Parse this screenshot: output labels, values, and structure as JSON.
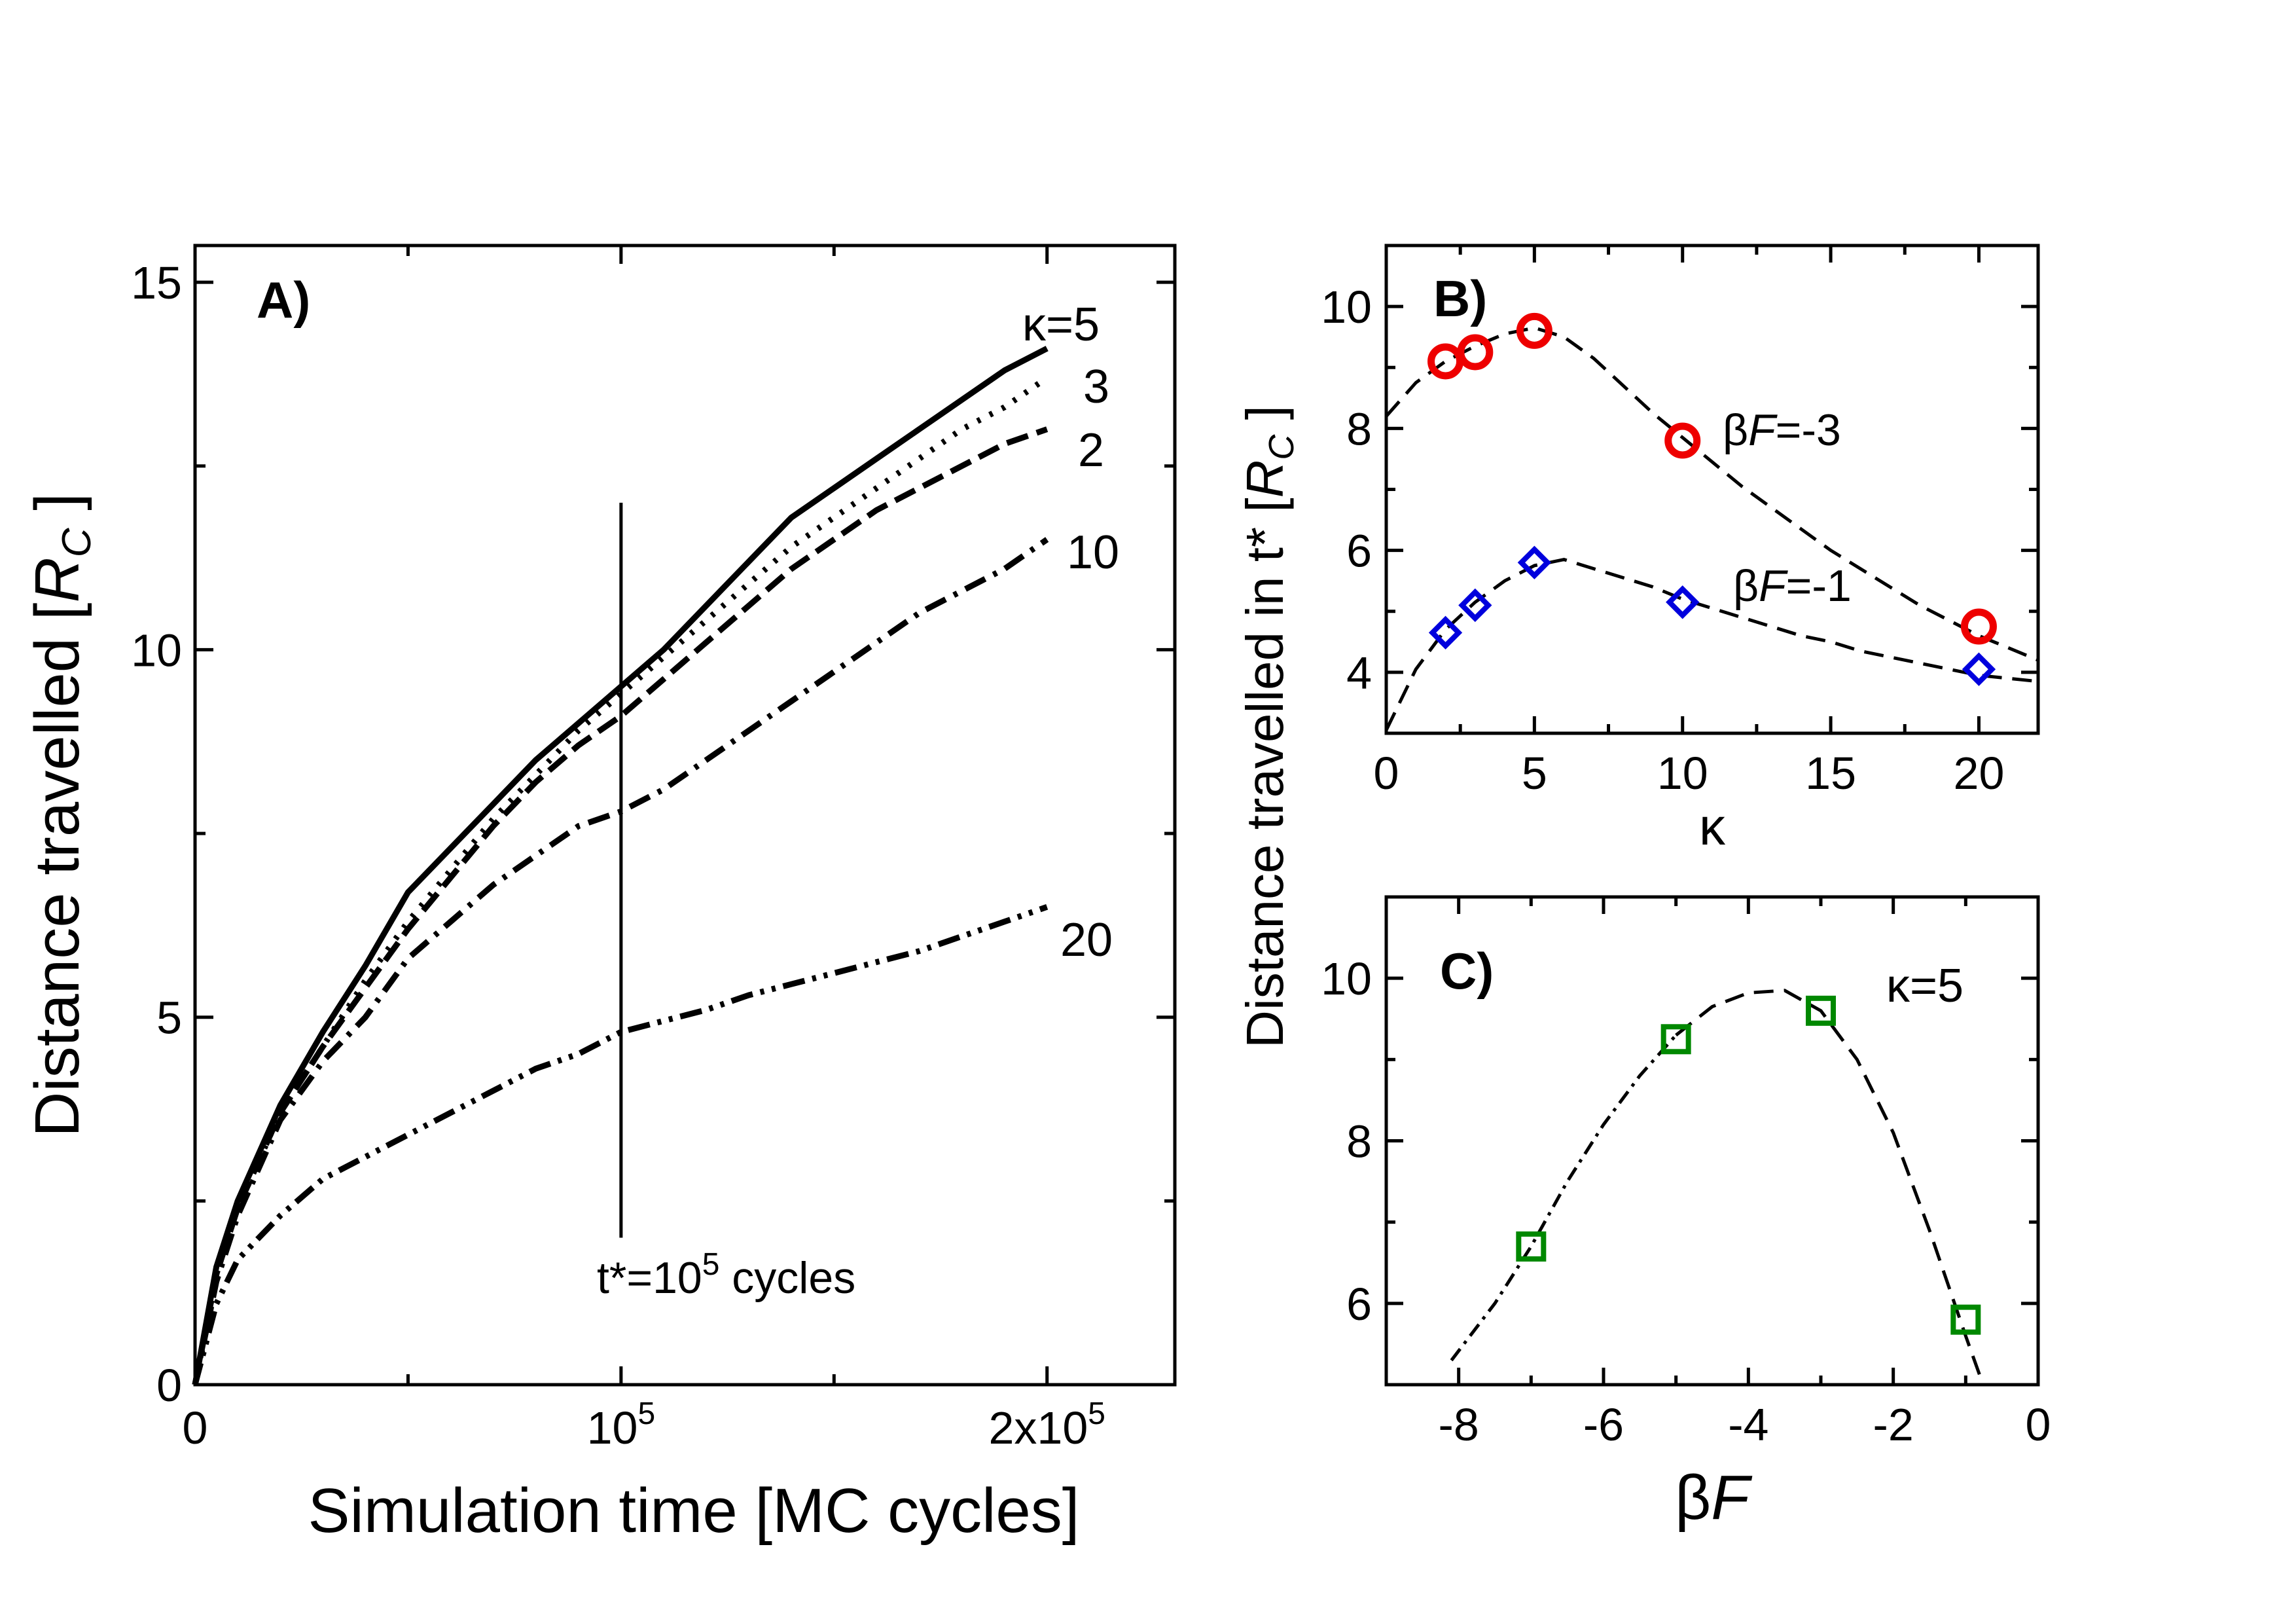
{
  "chart_data": [
    {
      "panel": "A",
      "type": "line",
      "panel_label": "A)",
      "xlabel": "Simulation time [MC cycles]",
      "ylabel_parts": [
        "Distance travelled [",
        "R",
        "C",
        " ]"
      ],
      "xlim": [
        0,
        230000
      ],
      "ylim": [
        0,
        15.5
      ],
      "x_ticks": [
        {
          "value": 0,
          "base": "0",
          "exp": ""
        },
        {
          "value": 100000,
          "base": "10",
          "exp": "5"
        },
        {
          "value": 200000,
          "base": "2x10",
          "exp": "5"
        }
      ],
      "y_ticks": [
        0,
        5,
        10,
        15
      ],
      "marker_line": {
        "x": 100000,
        "y_from": 2,
        "y_to": 12,
        "label_base": "t*=10",
        "label_exp": "5",
        "label_tail": " cycles"
      },
      "series": [
        {
          "label": "κ=5",
          "dash": "solid",
          "x": [
            0,
            5000,
            10000,
            20000,
            30000,
            40000,
            50000,
            60000,
            70000,
            80000,
            90000,
            100000,
            110000,
            120000,
            130000,
            140000,
            150000,
            160000,
            170000,
            180000,
            190000,
            200000
          ],
          "y": [
            0,
            1.6,
            2.5,
            3.8,
            4.8,
            5.7,
            6.7,
            7.3,
            7.9,
            8.5,
            9.0,
            9.5,
            10.0,
            10.6,
            11.2,
            11.8,
            12.2,
            12.6,
            13.0,
            13.4,
            13.8,
            14.1
          ]
        },
        {
          "label": "3",
          "dash": "dot",
          "x": [
            0,
            5000,
            10000,
            20000,
            30000,
            40000,
            50000,
            60000,
            70000,
            80000,
            90000,
            100000,
            110000,
            120000,
            130000,
            140000,
            150000,
            160000,
            170000,
            180000,
            190000,
            200000
          ],
          "y": [
            0,
            1.5,
            2.4,
            3.7,
            4.6,
            5.5,
            6.3,
            7.0,
            7.7,
            8.3,
            8.9,
            9.4,
            9.9,
            10.4,
            10.9,
            11.4,
            11.8,
            12.2,
            12.6,
            13.0,
            13.3,
            13.7
          ]
        },
        {
          "label": "2",
          "dash": "dash",
          "x": [
            0,
            5000,
            10000,
            20000,
            30000,
            40000,
            50000,
            60000,
            70000,
            80000,
            90000,
            100000,
            110000,
            120000,
            130000,
            140000,
            150000,
            160000,
            170000,
            180000,
            190000,
            200000
          ],
          "y": [
            0,
            1.5,
            2.4,
            3.7,
            4.6,
            5.4,
            6.2,
            6.9,
            7.6,
            8.2,
            8.7,
            9.1,
            9.6,
            10.1,
            10.6,
            11.1,
            11.5,
            11.9,
            12.2,
            12.5,
            12.8,
            13.0
          ]
        },
        {
          "label": "10",
          "dash": "dashdot",
          "x": [
            0,
            5000,
            10000,
            20000,
            30000,
            40000,
            50000,
            60000,
            70000,
            80000,
            90000,
            100000,
            110000,
            120000,
            130000,
            140000,
            150000,
            160000,
            170000,
            180000,
            190000,
            200000
          ],
          "y": [
            0,
            1.4,
            2.3,
            3.6,
            4.4,
            5.0,
            5.8,
            6.3,
            6.8,
            7.2,
            7.6,
            7.8,
            8.1,
            8.5,
            8.9,
            9.3,
            9.7,
            10.1,
            10.5,
            10.8,
            11.1,
            11.5
          ]
        },
        {
          "label": "20",
          "dash": "dashdotdot",
          "x": [
            0,
            5000,
            10000,
            20000,
            30000,
            40000,
            50000,
            60000,
            70000,
            80000,
            90000,
            100000,
            110000,
            120000,
            130000,
            140000,
            150000,
            160000,
            170000,
            180000,
            190000,
            200000
          ],
          "y": [
            0,
            1.1,
            1.7,
            2.3,
            2.8,
            3.1,
            3.4,
            3.7,
            4.0,
            4.3,
            4.5,
            4.8,
            4.95,
            5.1,
            5.3,
            5.45,
            5.6,
            5.75,
            5.9,
            6.1,
            6.3,
            6.5
          ]
        }
      ]
    },
    {
      "panel": "B",
      "type": "scatter",
      "panel_label": "B)",
      "xlabel": "κ",
      "ylabel_parts": [
        "Distance travelled in t* [",
        "R",
        "C",
        " ]"
      ],
      "xlim": [
        0,
        22
      ],
      "ylim": [
        3,
        11
      ],
      "x_ticks": [
        0,
        5,
        10,
        15,
        20
      ],
      "y_ticks": [
        4,
        6,
        8,
        10
      ],
      "series": [
        {
          "label_prefix": "β",
          "label_italic": "F",
          "label_suffix": "=-3",
          "marker": "circle",
          "color": "#ee0000",
          "x": [
            2,
            3,
            5,
            10,
            20
          ],
          "y": [
            9.1,
            9.25,
            9.6,
            7.8,
            4.75
          ],
          "fit_x": [
            0,
            1,
            2,
            3,
            4,
            5,
            6,
            7,
            8,
            9,
            10,
            11,
            12,
            13,
            14,
            15,
            16,
            17,
            18,
            19,
            20,
            21,
            22
          ],
          "fit_y": [
            8.2,
            8.75,
            9.1,
            9.35,
            9.55,
            9.65,
            9.5,
            9.15,
            8.7,
            8.25,
            7.85,
            7.45,
            7.05,
            6.7,
            6.35,
            6.0,
            5.7,
            5.4,
            5.1,
            4.85,
            4.6,
            4.4,
            4.2
          ]
        },
        {
          "label_prefix": "β",
          "label_italic": "F",
          "label_suffix": "=-1",
          "marker": "diamond",
          "color": "#0000dd",
          "x": [
            2,
            3,
            5,
            10,
            20
          ],
          "y": [
            4.65,
            5.1,
            5.8,
            5.15,
            4.05
          ],
          "fit_x": [
            0,
            1,
            2,
            3,
            4,
            5,
            6,
            7,
            8,
            9,
            10,
            11,
            12,
            13,
            14,
            15,
            16,
            17,
            18,
            19,
            20,
            21,
            22
          ],
          "fit_y": [
            3.05,
            4.05,
            4.7,
            5.15,
            5.5,
            5.75,
            5.85,
            5.7,
            5.55,
            5.4,
            5.2,
            5.05,
            4.9,
            4.75,
            4.6,
            4.5,
            4.35,
            4.25,
            4.15,
            4.05,
            3.95,
            3.9,
            3.85
          ]
        }
      ]
    },
    {
      "panel": "C",
      "type": "scatter",
      "panel_label": "C)",
      "annotation": "κ=5",
      "xlabel_prefix": "β",
      "xlabel_italic": "F",
      "xlim": [
        -9,
        0
      ],
      "ylim": [
        5,
        11
      ],
      "x_ticks": [
        -8,
        -6,
        -4,
        -2,
        0
      ],
      "y_ticks": [
        6,
        8,
        10
      ],
      "series": [
        {
          "marker": "square",
          "color": "#008800",
          "x": [
            -7,
            -5,
            -3,
            -1
          ],
          "y": [
            6.7,
            9.25,
            9.6,
            5.8
          ],
          "fit_x": [
            -8.1,
            -7.5,
            -7.0,
            -6.5,
            -6.0,
            -5.5,
            -5.0,
            -4.5,
            -4.0,
            -3.5,
            -3.0,
            -2.5,
            -2.0,
            -1.5,
            -1.0,
            -0.8
          ],
          "fit_y": [
            5.3,
            6.0,
            6.7,
            7.5,
            8.2,
            8.8,
            9.3,
            9.65,
            9.82,
            9.85,
            9.6,
            9.0,
            8.1,
            6.9,
            5.6,
            5.1
          ]
        }
      ]
    }
  ]
}
